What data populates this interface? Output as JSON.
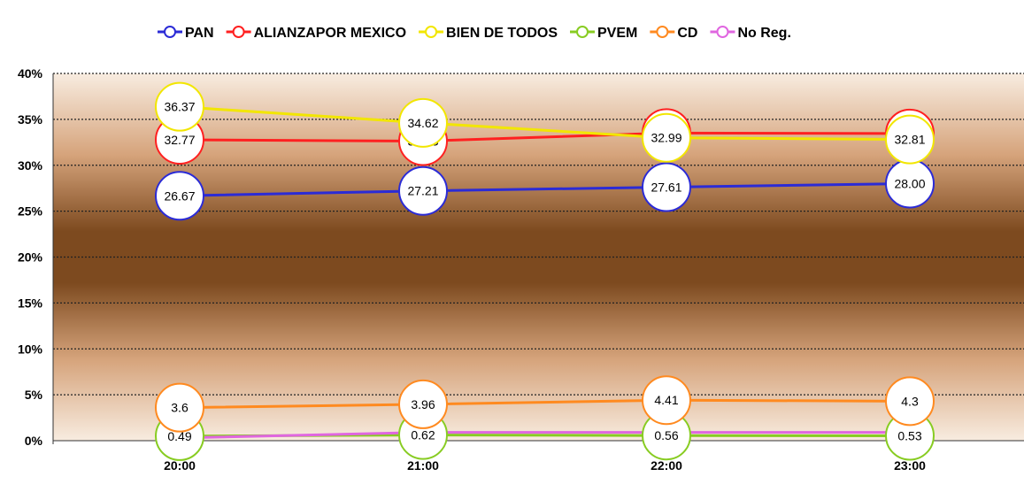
{
  "chart_data": {
    "type": "line",
    "categories": [
      "20:00",
      "21:00",
      "22:00",
      "23:00"
    ],
    "ylim": [
      0,
      40
    ],
    "yticks": [
      "0%",
      "5%",
      "10%",
      "15%",
      "20%",
      "25%",
      "30%",
      "35%",
      "40%"
    ],
    "grid": true,
    "legend_position": "top",
    "series": [
      {
        "name": "PAN",
        "color": "#2b2bd6",
        "values": [
          26.67,
          27.21,
          27.61,
          28.0
        ],
        "labels": [
          "26.67",
          "27.21",
          "27.61",
          "28.00"
        ]
      },
      {
        "name": "ALIANZAPOR MEXICO",
        "color": "#ff2020",
        "values": [
          32.77,
          32.63,
          33.51,
          33.46
        ],
        "labels": [
          "32.77",
          "32.63",
          "33.51",
          "33.46"
        ]
      },
      {
        "name": "BIEN DE TODOS",
        "color": "#f2e600",
        "values": [
          36.37,
          34.62,
          32.99,
          32.81
        ],
        "labels": [
          "36.37",
          "34.62",
          "32.99",
          "32.81"
        ]
      },
      {
        "name": "PVEM",
        "color": "#88cc22",
        "values": [
          0.49,
          0.62,
          0.56,
          0.53
        ],
        "labels": [
          "0.49",
          "0.62",
          "0.56",
          "0.53"
        ]
      },
      {
        "name": "CD",
        "color": "#ff8a20",
        "values": [
          3.6,
          3.96,
          4.41,
          4.3
        ],
        "labels": [
          "3.6",
          "3.96",
          "4.41",
          "4.3"
        ]
      },
      {
        "name": "No Reg.",
        "color": "#e066e0",
        "values": [
          0.3,
          0.9,
          0.9,
          0.9
        ],
        "labels": []
      }
    ]
  }
}
